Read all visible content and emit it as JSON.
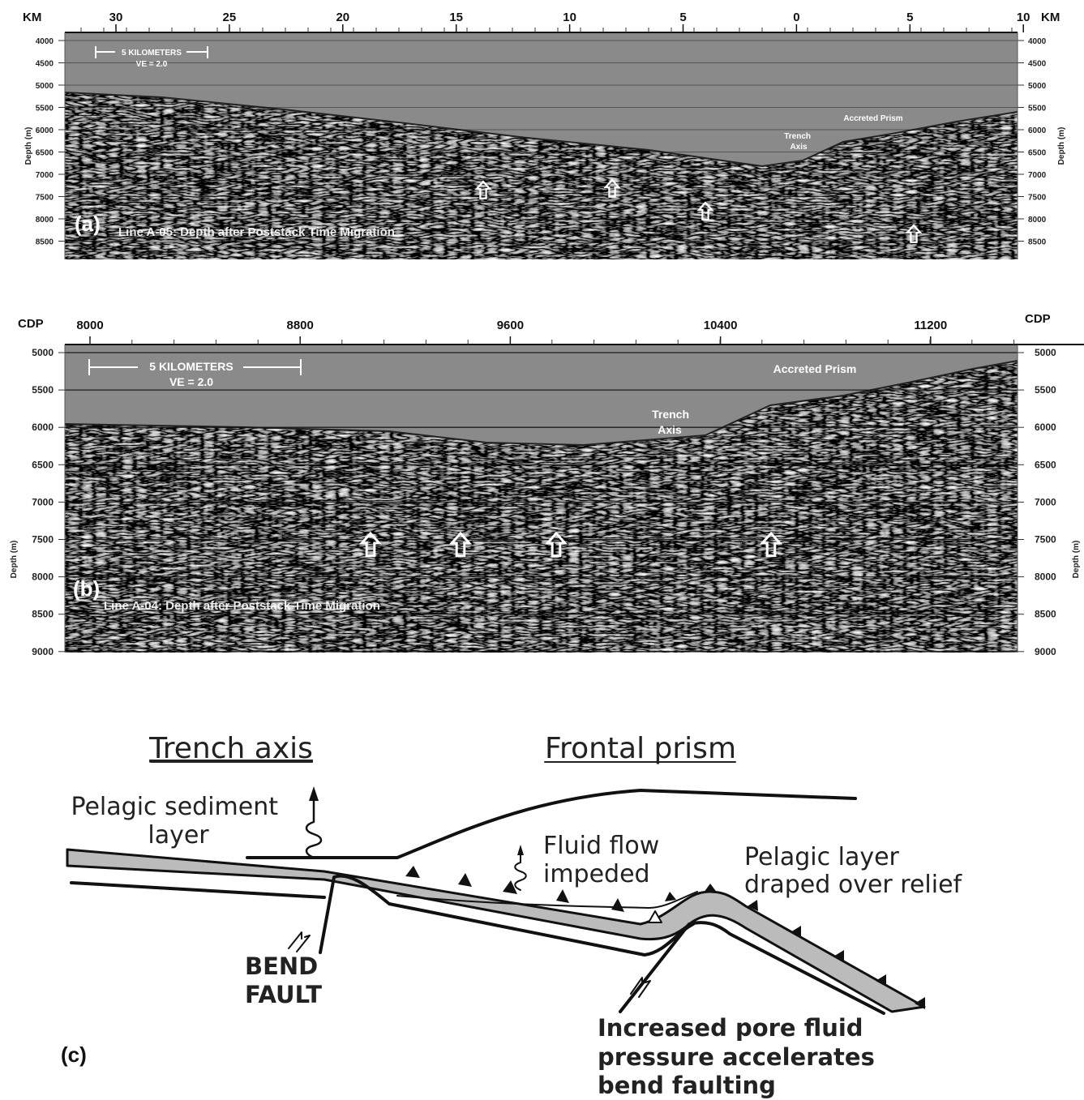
{
  "panel_a": {
    "label": "(a)",
    "x_unit": "KM",
    "x_ticks": [
      "30",
      "25",
      "20",
      "15",
      "10",
      "5",
      "0",
      "5",
      "10"
    ],
    "y_ticks": [
      "4000",
      "4500",
      "5000",
      "5500",
      "6000",
      "6500",
      "7000",
      "7500",
      "8000",
      "8500"
    ],
    "y_axis_label": "Depth (m)",
    "scale_bar": "5 KILOMETERS",
    "ve": "VE = 2.0",
    "caption": "Line A-05: Depth after Poststack Time Migration",
    "accreted_prism": "Accreted Prism",
    "trench_axis": [
      "Trench",
      "Axis"
    ]
  },
  "panel_b": {
    "label": "(b)",
    "x_unit": "CDP",
    "x_ticks": [
      "8000",
      "8800",
      "9600",
      "10400",
      "11200"
    ],
    "y_ticks": [
      "5000",
      "5500",
      "6000",
      "6500",
      "7000",
      "7500",
      "8000",
      "8500",
      "9000"
    ],
    "y_axis_label": "Depth (m)",
    "scale_bar": "5 KILOMETERS",
    "ve": "VE = 2.0",
    "caption": "Line A-04: Depth after Poststack Time Migration",
    "accreted_prism": "Accreted Prism",
    "trench_axis": [
      "Trench",
      "Axis"
    ]
  },
  "panel_c": {
    "label": "(c)",
    "trench_axis": "Trench axis",
    "frontal_prism": "Frontal prism",
    "pelagic_sediment": [
      "Pelagic sediment",
      "layer"
    ],
    "fluid_flow": [
      "Fluid flow",
      "impeded"
    ],
    "pelagic_layer": [
      "Pelagic layer",
      "draped over relief"
    ],
    "bend_fault": [
      "BEND",
      "FAULT"
    ],
    "pore_fluid": [
      "Increased pore fluid",
      "pressure accelerates",
      "bend faulting"
    ]
  }
}
